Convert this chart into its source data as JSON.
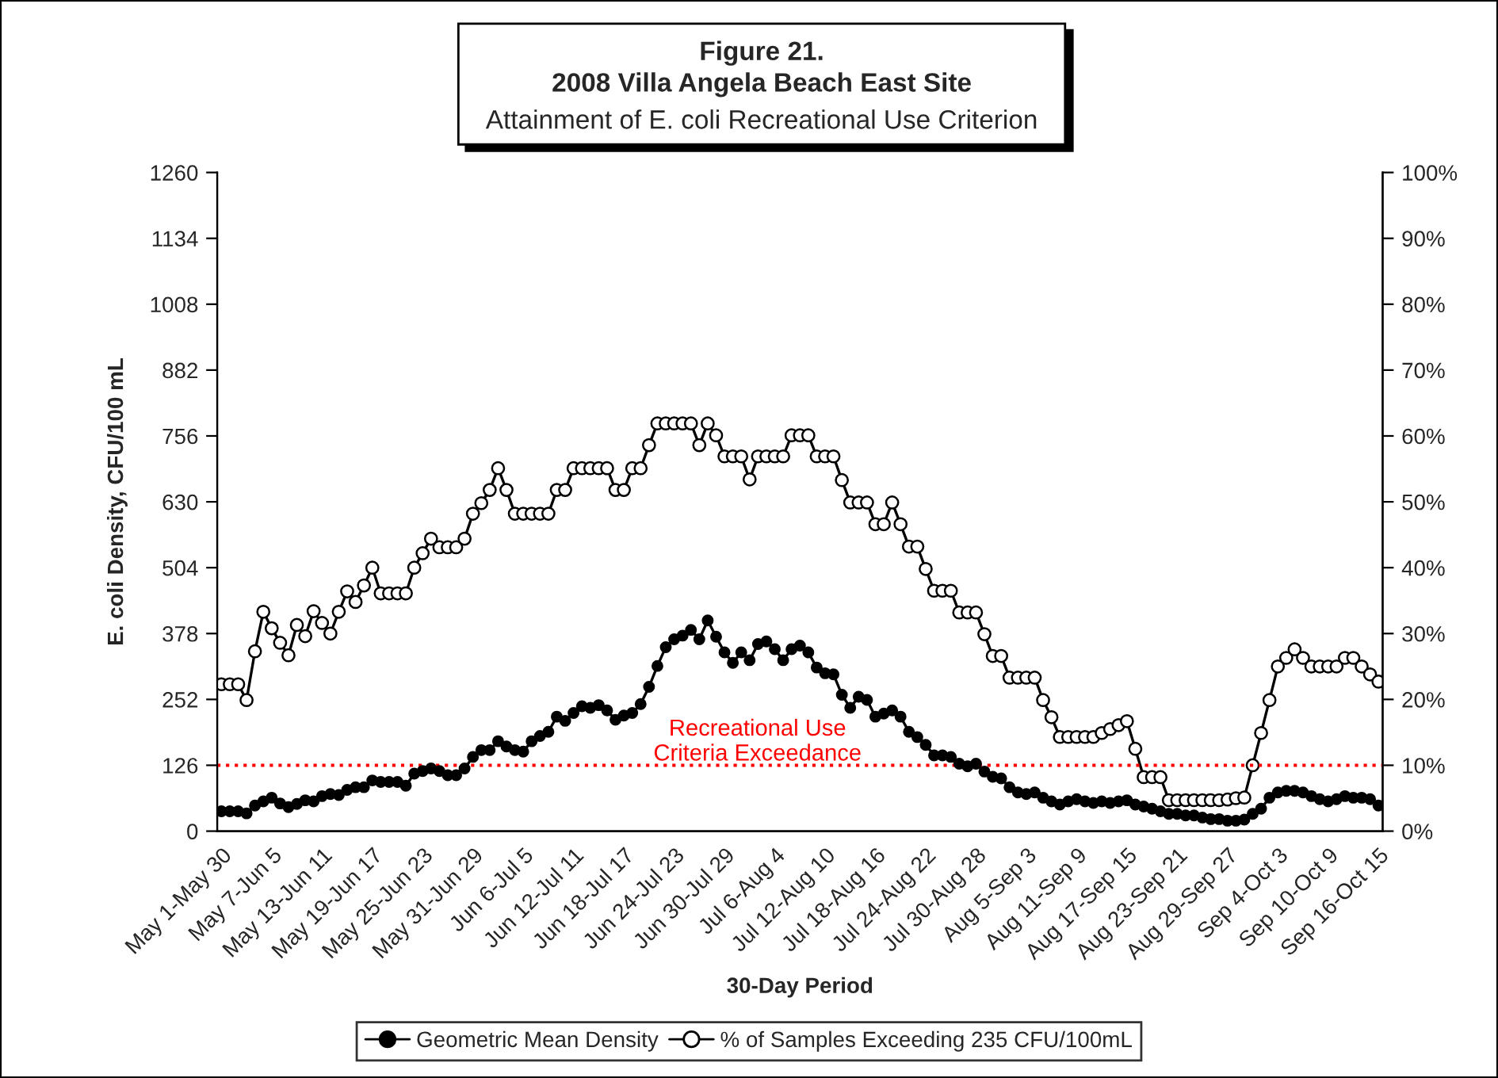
{
  "chart_data": {
    "type": "line",
    "title": "Figure 21.\n2008 Villa Angela Beach East Site",
    "subtitle": "Attainment of E. coli Recreational Use Criterion",
    "xlabel": "30-Day Period",
    "ylabel": "E. coli Density, CFU/100 mL",
    "categories": [
      "May 1-May 30",
      null,
      null,
      null,
      null,
      null,
      "May 7-Jun 5",
      null,
      null,
      null,
      null,
      null,
      "May 13-Jun 11",
      null,
      null,
      null,
      null,
      null,
      "May 19-Jun 17",
      null,
      null,
      null,
      null,
      null,
      "May 25-Jun 23",
      null,
      null,
      null,
      null,
      null,
      "May 31-Jun 29",
      null,
      null,
      null,
      null,
      null,
      "Jun 6-Jul 5",
      null,
      null,
      null,
      null,
      null,
      "Jun 12-Jul 11",
      null,
      null,
      null,
      null,
      null,
      "Jun 18-Jul 17",
      null,
      null,
      null,
      null,
      null,
      "Jun 24-Jul 23",
      null,
      null,
      null,
      null,
      null,
      "Jun 30-Jul 29",
      null,
      null,
      null,
      null,
      null,
      "Jul 6-Aug 4",
      null,
      null,
      null,
      null,
      null,
      "Jul 12-Aug 10",
      null,
      null,
      null,
      null,
      null,
      "Jul 18-Aug 16",
      null,
      null,
      null,
      null,
      null,
      "Jul 24-Aug 22",
      null,
      null,
      null,
      null,
      null,
      "Jul 30-Aug 28",
      null,
      null,
      null,
      null,
      null,
      "Aug 5-Sep 3",
      null,
      null,
      null,
      null,
      null,
      "Aug 11-Sep 9",
      null,
      null,
      null,
      null,
      null,
      "Aug 17-Sep 15",
      null,
      null,
      null,
      null,
      null,
      "Aug 23-Sep 21",
      null,
      null,
      null,
      null,
      null,
      "Aug 29-Sep 27",
      null,
      null,
      null,
      null,
      null,
      "Sep 4-Oct 3",
      null,
      null,
      null,
      null,
      null,
      "Sep 10-Oct 9",
      null,
      null,
      null,
      null,
      null,
      "Sep 16-Oct 15"
    ],
    "series": [
      {
        "name": "Geometric Mean Density",
        "color": "#000000",
        "values": [
          38,
          38,
          38,
          34,
          49,
          57,
          64,
          53,
          46,
          52,
          59,
          57,
          67,
          71,
          69,
          79,
          84,
          84,
          97,
          94,
          94,
          94,
          87,
          110,
          115,
          120,
          115,
          107,
          107,
          120,
          142,
          155,
          155,
          172,
          162,
          155,
          152,
          172,
          182,
          190,
          219,
          211,
          226,
          239,
          236,
          241,
          231,
          213,
          221,
          226,
          243,
          276,
          316,
          352,
          367,
          374,
          385,
          367,
          403,
          372,
          342,
          322,
          342,
          327,
          358,
          363,
          348,
          327,
          348,
          355,
          342,
          313,
          302,
          300,
          261,
          236,
          257,
          251,
          219,
          225,
          231,
          219,
          190,
          180,
          165,
          145,
          145,
          142,
          129,
          124,
          129,
          114,
          104,
          101,
          84,
          74,
          71,
          74,
          64,
          57,
          51,
          57,
          61,
          57,
          54,
          57,
          54,
          57,
          59,
          51,
          47,
          43,
          38,
          33,
          33,
          30,
          30,
          26,
          23,
          23,
          20,
          20,
          22,
          33,
          43,
          64,
          74,
          77,
          77,
          74,
          67,
          61,
          57,
          61,
          67,
          64,
          64,
          61,
          49
        ]
      },
      {
        "name": "% of Samples Exceeding 235 CFU/100mL",
        "color": "#ffffff",
        "axis": "y2",
        "values": [
          22.3,
          22.3,
          22.3,
          19.9,
          27.3,
          33.3,
          30.8,
          28.6,
          26.7,
          31.3,
          29.6,
          33.4,
          31.6,
          30.0,
          33.3,
          36.4,
          34.8,
          37.3,
          40.0,
          36.1,
          36.1,
          36.1,
          36.1,
          40.0,
          42.2,
          44.4,
          43.1,
          43.1,
          43.1,
          44.4,
          48.2,
          49.8,
          51.8,
          55.1,
          51.8,
          48.2,
          48.2,
          48.2,
          48.2,
          48.2,
          51.8,
          51.8,
          55.1,
          55.1,
          55.1,
          55.1,
          55.1,
          51.8,
          51.8,
          55.1,
          55.1,
          58.6,
          61.9,
          61.9,
          61.9,
          61.9,
          61.9,
          58.6,
          61.9,
          60.1,
          56.9,
          56.9,
          56.9,
          53.4,
          56.9,
          56.9,
          56.9,
          56.9,
          60.1,
          60.1,
          60.1,
          56.9,
          56.9,
          56.9,
          53.3,
          49.9,
          49.9,
          49.9,
          46.6,
          46.6,
          49.9,
          46.6,
          43.2,
          43.2,
          39.8,
          36.5,
          36.5,
          36.5,
          33.2,
          33.2,
          33.2,
          29.9,
          26.6,
          26.6,
          23.3,
          23.3,
          23.3,
          23.3,
          19.9,
          17.3,
          14.3,
          14.3,
          14.3,
          14.3,
          14.3,
          14.9,
          15.5,
          16.1,
          16.7,
          12.5,
          8.2,
          8.2,
          8.2,
          4.7,
          4.7,
          4.7,
          4.7,
          4.7,
          4.7,
          4.7,
          4.8,
          5.0,
          5.1,
          10.0,
          14.9,
          19.9,
          25.0,
          26.3,
          27.6,
          26.3,
          25.0,
          25.0,
          25.0,
          25.0,
          26.3,
          26.3,
          25.0,
          23.8,
          22.7
        ]
      }
    ],
    "ylim": [
      0,
      1260
    ],
    "yticks": [
      0,
      126,
      252,
      378,
      504,
      630,
      756,
      882,
      1008,
      1134,
      1260
    ],
    "y2lim": [
      0,
      100
    ],
    "y2ticks": [
      {
        "value": 0,
        "label": "0%"
      },
      {
        "value": 10,
        "label": "10%"
      },
      {
        "value": 20,
        "label": "20%"
      },
      {
        "value": 30,
        "label": "30%"
      },
      {
        "value": 40,
        "label": "40%"
      },
      {
        "value": 50,
        "label": "50%"
      },
      {
        "value": 60,
        "label": "60%"
      },
      {
        "value": 70,
        "label": "70%"
      },
      {
        "value": 80,
        "label": "80%"
      },
      {
        "value": 90,
        "label": "90%"
      },
      {
        "value": 100,
        "label": "100%"
      }
    ],
    "ref_lines": [
      {
        "axis": "y",
        "value": 126,
        "label": "Recreational Use\nCriteria Exceedance",
        "color": "#ff0000",
        "line_style": "dotted"
      }
    ],
    "marker": "circle",
    "line_style": "solid",
    "legend": "bottom",
    "grid": false
  }
}
